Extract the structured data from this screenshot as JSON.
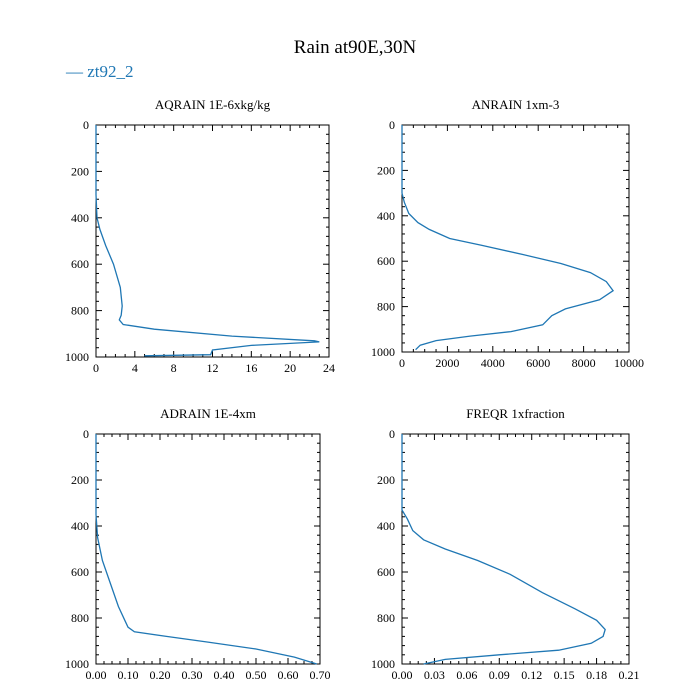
{
  "title": "Rain at90E,30N",
  "legend": {
    "label": "— zt92_2",
    "color": "#1f77b4"
  },
  "chart_data": [
    {
      "type": "line",
      "title": "AQRAIN  1E-6xkg/kg",
      "xlim": [
        0,
        24
      ],
      "ylim": [
        1000,
        0
      ],
      "xticks": [
        "0",
        "4",
        "8",
        "12",
        "16",
        "20",
        "24"
      ],
      "yticks": [
        "0",
        "200",
        "400",
        "600",
        "800",
        "1000"
      ],
      "series": [
        {
          "color": "#1f77b4",
          "x": [
            0,
            0,
            0.1,
            0.4,
            1.0,
            1.8,
            2.5,
            2.7,
            2.6,
            2.4,
            2.8,
            6,
            14,
            22.5,
            23,
            16,
            12,
            11.8,
            5
          ],
          "y": [
            0,
            300,
            400,
            450,
            520,
            600,
            700,
            780,
            820,
            840,
            860,
            880,
            910,
            930,
            935,
            950,
            970,
            990,
            995
          ]
        }
      ]
    },
    {
      "type": "line",
      "title": "ANRAIN  1xm-3",
      "xlim": [
        0,
        10000
      ],
      "ylim": [
        1000,
        0
      ],
      "xticks": [
        "0",
        "2000",
        "4000",
        "6000",
        "8000",
        "10000"
      ],
      "yticks": [
        "0",
        "200",
        "400",
        "600",
        "800",
        "1000"
      ],
      "series": [
        {
          "color": "#1f77b4",
          "x": [
            0,
            0,
            100,
            300,
            700,
            1200,
            2100,
            3500,
            5300,
            7000,
            8300,
            9000,
            9300,
            8700,
            7200,
            6600,
            6200,
            4800,
            3000,
            1500,
            800,
            600
          ],
          "y": [
            0,
            300,
            340,
            390,
            430,
            460,
            500,
            530,
            570,
            610,
            650,
            690,
            730,
            770,
            810,
            840,
            880,
            910,
            930,
            950,
            970,
            990
          ]
        }
      ]
    },
    {
      "type": "line",
      "title": "ADRAIN  1E-4xm",
      "xlim": [
        0,
        0.7
      ],
      "ylim": [
        1000,
        0
      ],
      "xticks": [
        "0.00",
        "0.10",
        "0.20",
        "0.30",
        "0.40",
        "0.50",
        "0.60",
        "0.70"
      ],
      "yticks": [
        "0",
        "200",
        "400",
        "600",
        "800",
        "1000"
      ],
      "series": [
        {
          "color": "#1f77b4",
          "x": [
            0,
            0,
            0.005,
            0.02,
            0.045,
            0.07,
            0.09,
            0.1,
            0.12,
            0.22,
            0.35,
            0.5,
            0.62,
            0.69
          ],
          "y": [
            0,
            350,
            450,
            550,
            650,
            750,
            810,
            840,
            860,
            880,
            905,
            935,
            970,
            1000
          ]
        }
      ]
    },
    {
      "type": "line",
      "title": "FREQR  1xfraction",
      "xlim": [
        0,
        0.21
      ],
      "ylim": [
        1000,
        0
      ],
      "xticks": [
        "0.00",
        "0.03",
        "0.06",
        "0.09",
        "0.12",
        "0.15",
        "0.18",
        "0.21"
      ],
      "yticks": [
        "0",
        "200",
        "400",
        "600",
        "800",
        "1000"
      ],
      "series": [
        {
          "color": "#1f77b4",
          "x": [
            0,
            0,
            0.005,
            0.01,
            0.02,
            0.04,
            0.07,
            0.1,
            0.13,
            0.16,
            0.18,
            0.188,
            0.186,
            0.175,
            0.145,
            0.09,
            0.04,
            0.02
          ],
          "y": [
            0,
            330,
            370,
            420,
            460,
            500,
            550,
            610,
            690,
            760,
            810,
            850,
            880,
            910,
            940,
            960,
            980,
            1000
          ]
        }
      ]
    }
  ]
}
